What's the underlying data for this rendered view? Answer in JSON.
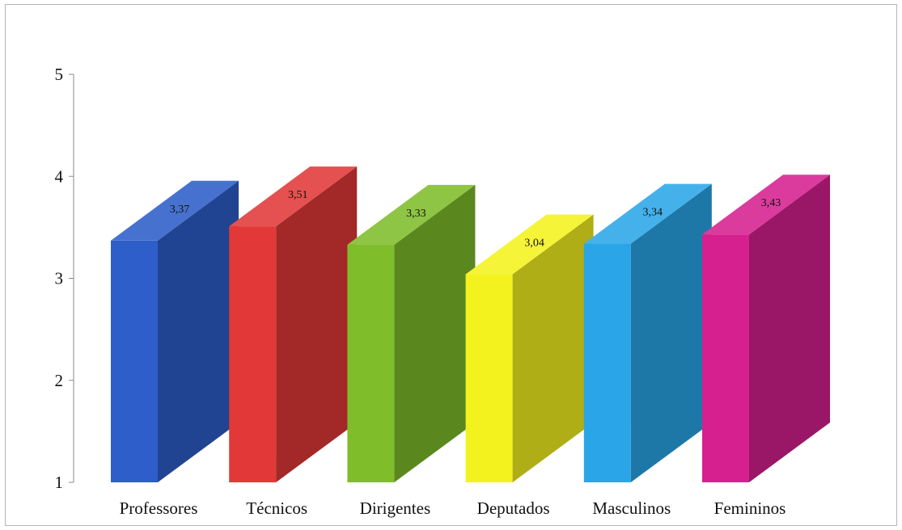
{
  "chart_data": {
    "type": "bar",
    "style": "3d",
    "categories": [
      "Professores",
      "Técnicos",
      "Dirigentes",
      "Deputados",
      "Masculinos",
      "Femininos"
    ],
    "values": [
      3.37,
      3.51,
      3.33,
      3.04,
      3.34,
      3.43
    ],
    "value_labels": [
      "3,37",
      "3,51",
      "3,33",
      "3,04",
      "3,34",
      "3,43"
    ],
    "y_ticks": [
      "1",
      "2",
      "3",
      "4",
      "5"
    ],
    "ylim": [
      1,
      5
    ],
    "title": "",
    "xlabel": "",
    "ylabel": "",
    "grid": false,
    "legend": "none",
    "colors": [
      "#2d5ec9",
      "#e23838",
      "#7fbd2a",
      "#f4f21e",
      "#2aa6e8",
      "#d6208f"
    ]
  }
}
